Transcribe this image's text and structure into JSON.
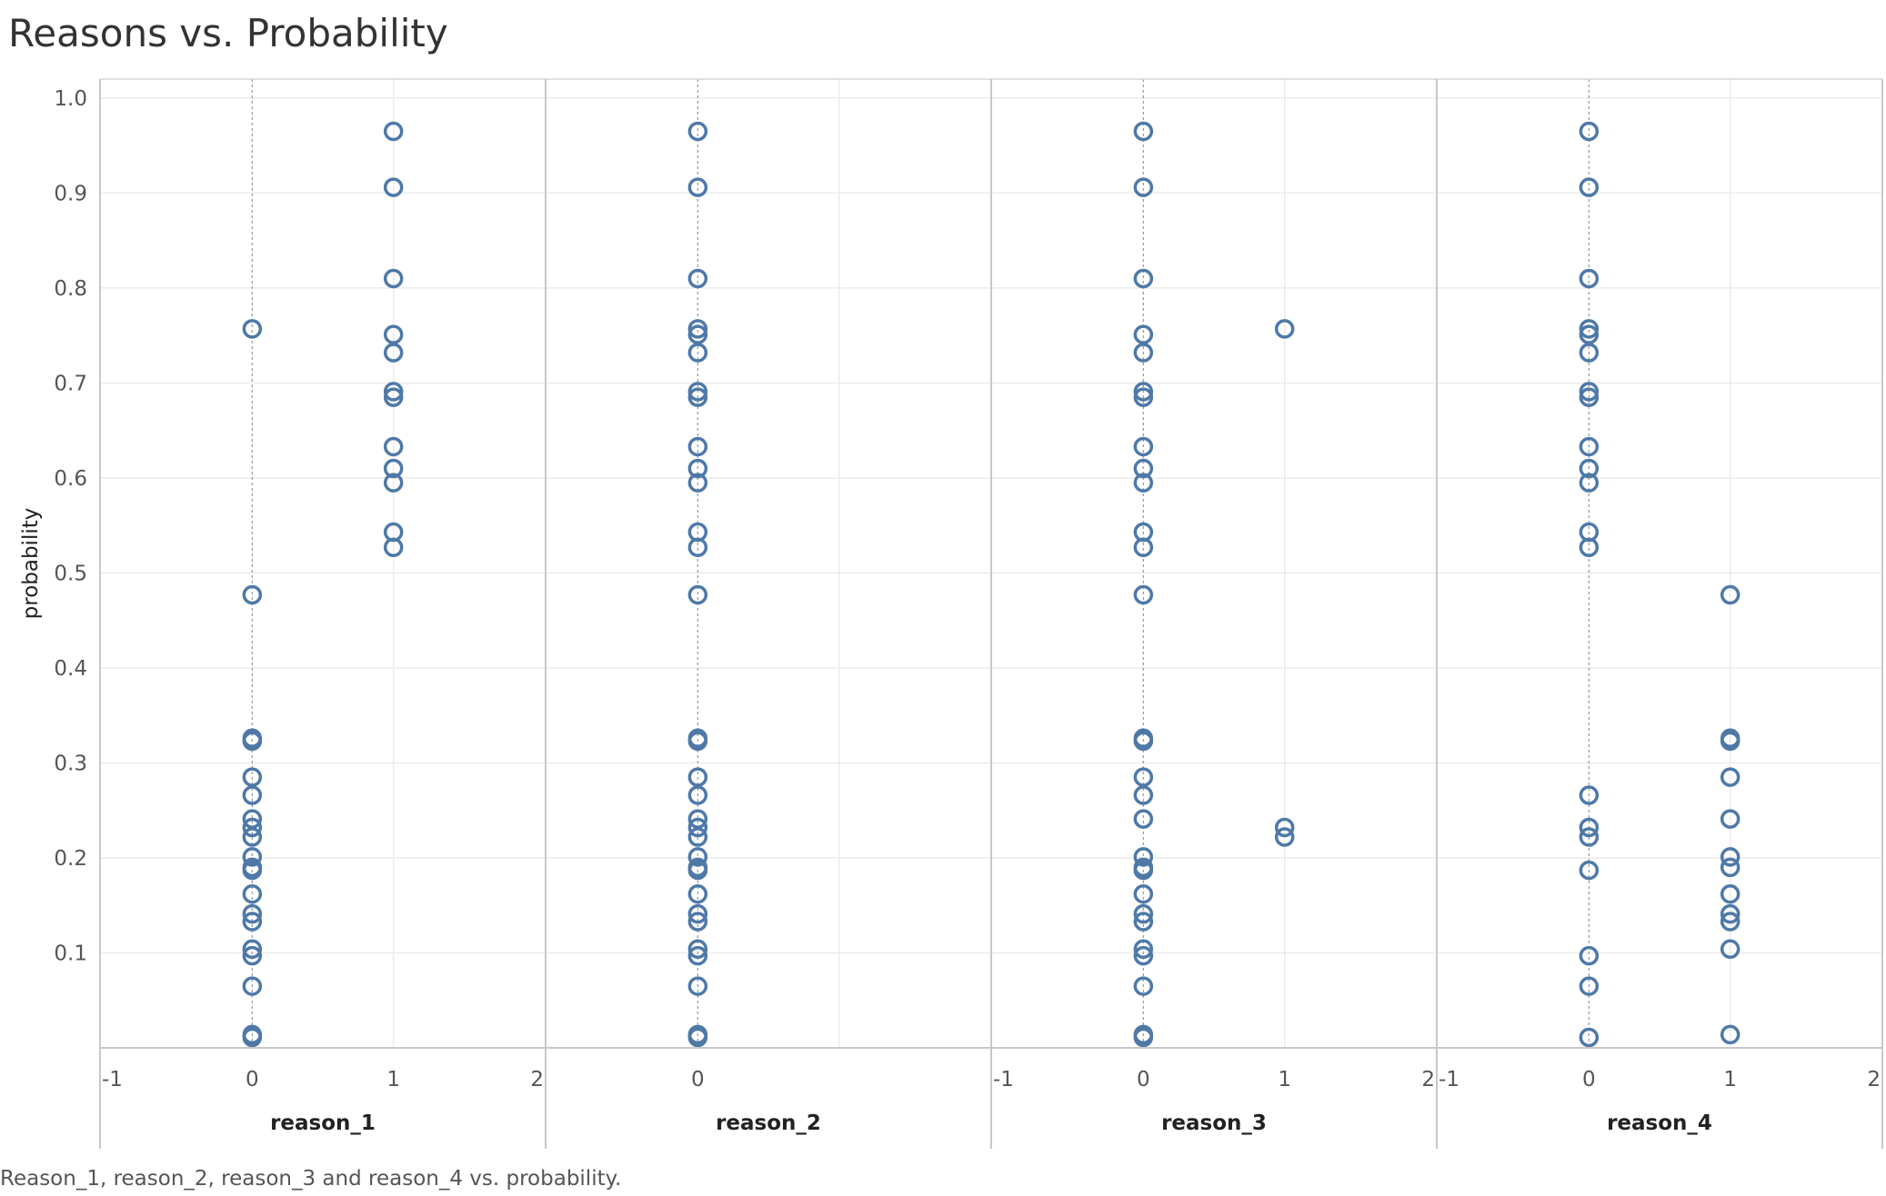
{
  "title": "Reasons vs. Probability",
  "caption": "Reason_1, reason_2, reason_3 and reason_4 vs. probability.",
  "chart_data": {
    "type": "scatter",
    "ylabel": "probability",
    "ylim": [
      0.0,
      1.02
    ],
    "yticks": [
      "0.1",
      "0.2",
      "0.3",
      "0.4",
      "0.5",
      "0.6",
      "0.7",
      "0.8",
      "0.9",
      "1.0"
    ],
    "xlim": [
      -1,
      2
    ],
    "marker_color": "#4e79a7",
    "grid": true,
    "panels": [
      {
        "xlabel": "reason_1",
        "xticks": [
          "-1",
          "0",
          "1",
          "2"
        ],
        "points": [
          [
            0,
            0.757
          ],
          [
            0,
            0.477
          ],
          [
            0,
            0.326
          ],
          [
            0,
            0.323
          ],
          [
            0,
            0.285
          ],
          [
            0,
            0.266
          ],
          [
            0,
            0.241
          ],
          [
            0,
            0.232
          ],
          [
            0,
            0.222
          ],
          [
            0,
            0.201
          ],
          [
            0,
            0.19
          ],
          [
            0,
            0.187
          ],
          [
            0,
            0.162
          ],
          [
            0,
            0.141
          ],
          [
            0,
            0.133
          ],
          [
            0,
            0.104
          ],
          [
            0,
            0.097
          ],
          [
            0,
            0.065
          ],
          [
            0,
            0.014
          ],
          [
            0,
            0.011
          ],
          [
            1,
            0.965
          ],
          [
            1,
            0.906
          ],
          [
            1,
            0.81
          ],
          [
            1,
            0.751
          ],
          [
            1,
            0.732
          ],
          [
            1,
            0.691
          ],
          [
            1,
            0.685
          ],
          [
            1,
            0.633
          ],
          [
            1,
            0.61
          ],
          [
            1,
            0.595
          ],
          [
            1,
            0.543
          ],
          [
            1,
            0.527
          ]
        ]
      },
      {
        "xlabel": "reason_2",
        "xticks": [
          "0"
        ],
        "points": [
          [
            0,
            0.965
          ],
          [
            0,
            0.906
          ],
          [
            0,
            0.81
          ],
          [
            0,
            0.757
          ],
          [
            0,
            0.751
          ],
          [
            0,
            0.732
          ],
          [
            0,
            0.691
          ],
          [
            0,
            0.685
          ],
          [
            0,
            0.633
          ],
          [
            0,
            0.61
          ],
          [
            0,
            0.595
          ],
          [
            0,
            0.543
          ],
          [
            0,
            0.527
          ],
          [
            0,
            0.477
          ],
          [
            0,
            0.326
          ],
          [
            0,
            0.323
          ],
          [
            0,
            0.285
          ],
          [
            0,
            0.266
          ],
          [
            0,
            0.241
          ],
          [
            0,
            0.232
          ],
          [
            0,
            0.222
          ],
          [
            0,
            0.201
          ],
          [
            0,
            0.19
          ],
          [
            0,
            0.187
          ],
          [
            0,
            0.162
          ],
          [
            0,
            0.141
          ],
          [
            0,
            0.133
          ],
          [
            0,
            0.104
          ],
          [
            0,
            0.097
          ],
          [
            0,
            0.065
          ],
          [
            0,
            0.014
          ],
          [
            0,
            0.011
          ]
        ]
      },
      {
        "xlabel": "reason_3",
        "xticks": [
          "-1",
          "0",
          "1",
          "2"
        ],
        "points": [
          [
            0,
            0.965
          ],
          [
            0,
            0.906
          ],
          [
            0,
            0.81
          ],
          [
            0,
            0.751
          ],
          [
            0,
            0.732
          ],
          [
            0,
            0.691
          ],
          [
            0,
            0.685
          ],
          [
            0,
            0.633
          ],
          [
            0,
            0.61
          ],
          [
            0,
            0.595
          ],
          [
            0,
            0.543
          ],
          [
            0,
            0.527
          ],
          [
            0,
            0.477
          ],
          [
            0,
            0.326
          ],
          [
            0,
            0.323
          ],
          [
            0,
            0.285
          ],
          [
            0,
            0.266
          ],
          [
            0,
            0.241
          ],
          [
            0,
            0.201
          ],
          [
            0,
            0.19
          ],
          [
            0,
            0.187
          ],
          [
            0,
            0.162
          ],
          [
            0,
            0.141
          ],
          [
            0,
            0.133
          ],
          [
            0,
            0.104
          ],
          [
            0,
            0.097
          ],
          [
            0,
            0.065
          ],
          [
            0,
            0.014
          ],
          [
            0,
            0.011
          ],
          [
            1,
            0.757
          ],
          [
            1,
            0.232
          ],
          [
            1,
            0.222
          ]
        ]
      },
      {
        "xlabel": "reason_4",
        "xticks": [
          "-1",
          "0",
          "1",
          "2"
        ],
        "points": [
          [
            0,
            0.965
          ],
          [
            0,
            0.906
          ],
          [
            0,
            0.81
          ],
          [
            0,
            0.757
          ],
          [
            0,
            0.751
          ],
          [
            0,
            0.732
          ],
          [
            0,
            0.691
          ],
          [
            0,
            0.685
          ],
          [
            0,
            0.633
          ],
          [
            0,
            0.61
          ],
          [
            0,
            0.595
          ],
          [
            0,
            0.543
          ],
          [
            0,
            0.527
          ],
          [
            0,
            0.266
          ],
          [
            0,
            0.232
          ],
          [
            0,
            0.222
          ],
          [
            0,
            0.187
          ],
          [
            0,
            0.097
          ],
          [
            0,
            0.065
          ],
          [
            0,
            0.011
          ],
          [
            1,
            0.477
          ],
          [
            1,
            0.326
          ],
          [
            1,
            0.323
          ],
          [
            1,
            0.285
          ],
          [
            1,
            0.241
          ],
          [
            1,
            0.201
          ],
          [
            1,
            0.19
          ],
          [
            1,
            0.162
          ],
          [
            1,
            0.141
          ],
          [
            1,
            0.133
          ],
          [
            1,
            0.104
          ],
          [
            1,
            0.014
          ]
        ]
      }
    ]
  }
}
